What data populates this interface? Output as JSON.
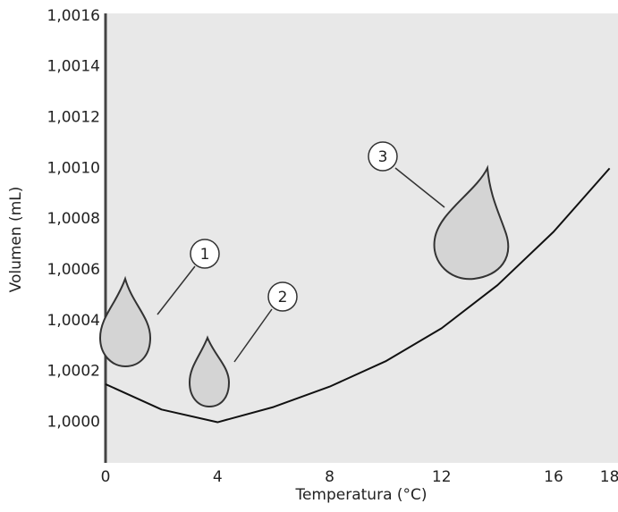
{
  "chart_data": {
    "type": "line",
    "x_label": "Temperatura (°C)",
    "y_label": "Volumen (mL)",
    "x": [
      0,
      2,
      4,
      6,
      8,
      10,
      12,
      14,
      16,
      18
    ],
    "series": [
      {
        "color": "#111111",
        "values": [
          1.00015,
          1.00005,
          1.0,
          1.00006,
          1.00014,
          1.00024,
          1.00037,
          1.00054,
          1.00075,
          1.001
        ]
      }
    ],
    "xlim": [
      0,
      18.3
    ],
    "ylim": [
      0.99984,
      1.00161
    ],
    "xticks": [
      0,
      4,
      8,
      12,
      16,
      18
    ],
    "yticks": [
      {
        "value": 1.0,
        "label": "1,0000"
      },
      {
        "value": 1.0002,
        "label": "1,0002"
      },
      {
        "value": 1.0004,
        "label": "1,0004"
      },
      {
        "value": 1.0006,
        "label": "1,0006"
      },
      {
        "value": 1.0008,
        "label": "1,0008"
      },
      {
        "value": 1.001,
        "label": "1,0010"
      },
      {
        "value": 1.0012,
        "label": "1,0012"
      },
      {
        "value": 1.0014,
        "label": "1,0014"
      },
      {
        "value": 1.0016,
        "label": "1,0016"
      }
    ],
    "plot_background": "#e8e8e8",
    "grid": false,
    "annotations": [
      {
        "text": "1"
      },
      {
        "text": "2"
      },
      {
        "text": "3"
      }
    ]
  }
}
